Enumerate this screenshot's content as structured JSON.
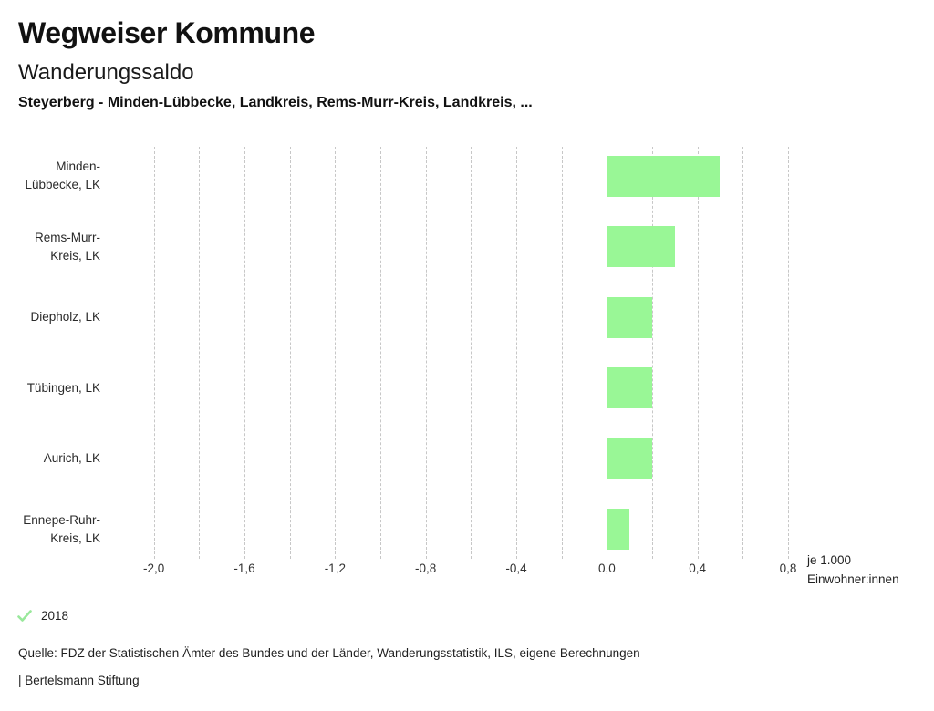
{
  "header": {
    "title": "Wegweiser Kommune",
    "subtitle": "Wanderungssaldo",
    "selection": "Steyerberg - Minden-Lübbecke, Landkreis, Rems-Murr-Kreis, Landkreis, ..."
  },
  "chart_data": {
    "type": "bar",
    "orientation": "horizontal",
    "title": "Wanderungssaldo",
    "categories": [
      "Minden-Lübbecke, LK",
      "Rems-Murr-Kreis, LK",
      "Diepholz, LK",
      "Tübingen, LK",
      "Aurich, LK",
      "Ennepe-Ruhr-Kreis, LK"
    ],
    "category_label_lines": [
      [
        "Minden-",
        "Lübbecke, LK"
      ],
      [
        "Rems-Murr-",
        "Kreis, LK"
      ],
      [
        "Diepholz, LK"
      ],
      [
        "Tübingen, LK"
      ],
      [
        "Aurich, LK"
      ],
      [
        "Ennepe-Ruhr-",
        "Kreis, LK"
      ]
    ],
    "series": [
      {
        "name": "2018",
        "values": [
          0.5,
          0.3,
          0.2,
          0.2,
          0.2,
          0.1
        ]
      }
    ],
    "xlim": [
      -2.2,
      0.8
    ],
    "grid": true,
    "grid_step": 0.2,
    "xticks": {
      "values": [
        -2.0,
        -1.6,
        -1.2,
        -0.8,
        -0.4,
        0.0,
        0.4,
        0.8
      ],
      "labels": [
        "-2,0",
        "-1,6",
        "-1,2",
        "-0,8",
        "-0,4",
        "0,0",
        "0,4",
        "0,8"
      ]
    },
    "unit_label_lines": [
      "je 1.000",
      "Einwohner:innen"
    ],
    "legend_position": "bottom-left"
  },
  "legend": {
    "year": "2018",
    "check_icon": "checkmark",
    "check_color": "#99e89b"
  },
  "footer": {
    "source": "Quelle: FDZ der Statistischen Ämter des Bundes und der Länder, Wanderungsstatistik, ILS, eigene Berechnungen",
    "attribution": "| Bertelsmann Stiftung"
  },
  "colors": {
    "bar": "#99f796",
    "grid": "#c7c7c7",
    "text": "#1f1f1f"
  }
}
